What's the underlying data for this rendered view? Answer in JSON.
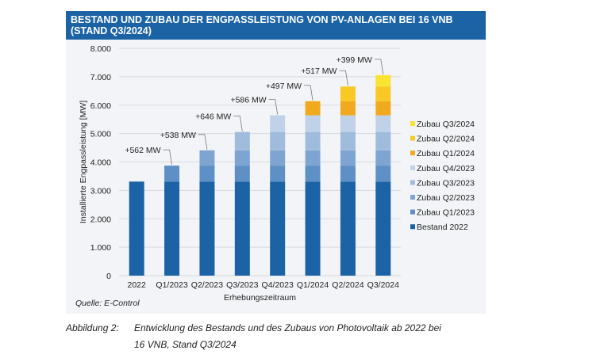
{
  "chart_data": {
    "type": "bar",
    "stacked": true,
    "title": "BESTAND UND ZUBAU DER ENGPASSLEISTUNG VON PV-ANLAGEN BEI 16 VNB",
    "title_line2": "(STAND Q3/2024)",
    "xlabel": "Erhebungszeitraum",
    "ylabel": "Installierte Engpassleistung [MW]",
    "ylim": [
      0,
      8000
    ],
    "yticks": [
      0,
      1000,
      2000,
      3000,
      4000,
      5000,
      6000,
      7000,
      8000
    ],
    "ytick_labels": [
      "0",
      "1.000",
      "2.000",
      "3.000",
      "4.000",
      "5.000",
      "6.000",
      "7.000",
      "8.000"
    ],
    "grid": true,
    "legend_position": "right",
    "categories": [
      "2022",
      "Q1/2023",
      "Q2/2023",
      "Q3/2023",
      "Q4/2023",
      "Q1/2024",
      "Q2/2024",
      "Q3/2024"
    ],
    "series": [
      {
        "name": "Bestand 2022",
        "color": "#1b63a5",
        "values": [
          3310,
          3310,
          3310,
          3310,
          3310,
          3310,
          3310,
          3310
        ]
      },
      {
        "name": "Zubau Q1/2023",
        "color": "#5e90c6",
        "values": [
          0,
          562,
          562,
          562,
          562,
          562,
          562,
          562
        ]
      },
      {
        "name": "Zubau Q2/2023",
        "color": "#7ea5d2",
        "values": [
          0,
          0,
          538,
          538,
          538,
          538,
          538,
          538
        ]
      },
      {
        "name": "Zubau Q3/2023",
        "color": "#a0bcdc",
        "values": [
          0,
          0,
          0,
          646,
          646,
          646,
          646,
          646
        ]
      },
      {
        "name": "Zubau Q4/2023",
        "color": "#bfd2e8",
        "values": [
          0,
          0,
          0,
          0,
          586,
          586,
          586,
          586
        ]
      },
      {
        "name": "Zubau Q1/2024",
        "color": "#f1aa1f",
        "values": [
          0,
          0,
          0,
          0,
          0,
          497,
          497,
          497
        ]
      },
      {
        "name": "Zubau Q2/2024",
        "color": "#f8c824",
        "values": [
          0,
          0,
          0,
          0,
          0,
          0,
          517,
          517
        ]
      },
      {
        "name": "Zubau Q3/2024",
        "color": "#fbe331",
        "values": [
          0,
          0,
          0,
          0,
          0,
          0,
          0,
          399
        ]
      }
    ],
    "annotations": [
      "",
      "+562 MW",
      "+538 MW",
      "+646 MW",
      "+586 MW",
      "+497 MW",
      "+517 MW",
      "+399 MW"
    ]
  },
  "source": "Quelle: E-Control",
  "caption": {
    "label": "Abbildung 2:",
    "line1": "Entwicklung des Bestands und des Zubaus von Photovoltaik ab 2022 bei",
    "line2": "16 VNB, Stand Q3/2024"
  }
}
